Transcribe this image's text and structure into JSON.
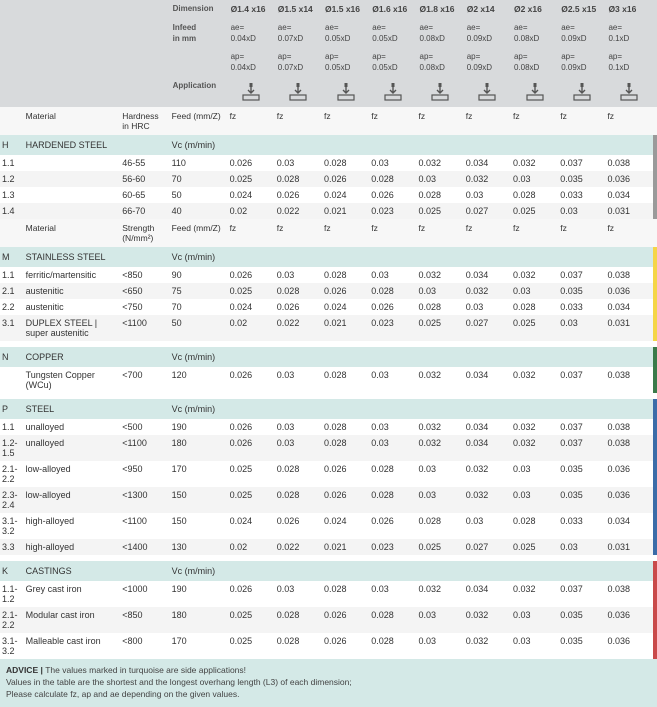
{
  "header": {
    "labels": {
      "dimension": "Dimension",
      "infeed": "Infeed\nin mm",
      "application": "Application",
      "material": "Material",
      "hardness": "Hardness\nin HRC",
      "strength": "Strength\n(N/mm²)",
      "feed": "Feed (mm/Z)",
      "vc": "Vc (m/min)",
      "fz": "fz"
    },
    "dims": [
      "Ø1.4 x16",
      "Ø1.5 x14",
      "Ø1.5 x16",
      "Ø1.6 x16",
      "Ø1.8 x16",
      "Ø2 x14",
      "Ø2 x16",
      "Ø2.5 x15",
      "Ø3 x16"
    ],
    "ae": [
      "ae=\n0.04xD",
      "ae=\n0.07xD",
      "ae=\n0.05xD",
      "ae=\n0.05xD",
      "ae=\n0.08xD",
      "ae=\n0.09xD",
      "ae=\n0.08xD",
      "ae=\n0.09xD",
      "ae=\n0.1xD"
    ],
    "ap": [
      "ap=\n0.04xD",
      "ap=\n0.07xD",
      "ap=\n0.05xD",
      "ap=\n0.05xD",
      "ap=\n0.08xD",
      "ap=\n0.09xD",
      "ap=\n0.08xD",
      "ap=\n0.09xD",
      "ap=\n0.1xD"
    ]
  },
  "groups": [
    {
      "code": "H",
      "name": "HARDENED STEEL",
      "paramLabel": "Hardness\nin HRC",
      "stripe": "s-grey",
      "rows": [
        {
          "n": "1.1",
          "mat": "",
          "p": "46-55",
          "vc": "110",
          "fz": [
            "0.026",
            "0.03",
            "0.028",
            "0.03",
            "0.032",
            "0.034",
            "0.032",
            "0.037",
            "0.038"
          ]
        },
        {
          "n": "1.2",
          "mat": "",
          "p": "56-60",
          "vc": "70",
          "fz": [
            "0.025",
            "0.028",
            "0.026",
            "0.028",
            "0.03",
            "0.032",
            "0.03",
            "0.035",
            "0.036"
          ]
        },
        {
          "n": "1.3",
          "mat": "",
          "p": "60-65",
          "vc": "50",
          "fz": [
            "0.024",
            "0.026",
            "0.024",
            "0.026",
            "0.028",
            "0.03",
            "0.028",
            "0.033",
            "0.034"
          ]
        },
        {
          "n": "1.4",
          "mat": "",
          "p": "66-70",
          "vc": "40",
          "fz": [
            "0.02",
            "0.022",
            "0.021",
            "0.023",
            "0.025",
            "0.027",
            "0.025",
            "0.03",
            "0.031"
          ]
        }
      ]
    },
    {
      "code": "M",
      "name": "STAINLESS STEEL",
      "paramLabel": "Strength\n(N/mm²)",
      "stripe": "s-yellow",
      "rows": [
        {
          "n": "1.1",
          "mat": "ferritic/martensitic",
          "p": "<850",
          "vc": "90",
          "fz": [
            "0.026",
            "0.03",
            "0.028",
            "0.03",
            "0.032",
            "0.034",
            "0.032",
            "0.037",
            "0.038"
          ]
        },
        {
          "n": "2.1",
          "mat": "austenitic",
          "p": "<650",
          "vc": "75",
          "fz": [
            "0.025",
            "0.028",
            "0.026",
            "0.028",
            "0.03",
            "0.032",
            "0.03",
            "0.035",
            "0.036"
          ]
        },
        {
          "n": "2.2",
          "mat": "austenitic",
          "p": "<750",
          "vc": "70",
          "fz": [
            "0.024",
            "0.026",
            "0.024",
            "0.026",
            "0.028",
            "0.03",
            "0.028",
            "0.033",
            "0.034"
          ]
        },
        {
          "n": "3.1",
          "mat": "DUPLEX STEEL |\nsuper austenitic",
          "p": "<1100",
          "vc": "50",
          "fz": [
            "0.02",
            "0.022",
            "0.021",
            "0.023",
            "0.025",
            "0.027",
            "0.025",
            "0.03",
            "0.031"
          ]
        }
      ]
    },
    {
      "code": "N",
      "name": "COPPER",
      "paramLabel": "",
      "stripe": "s-green",
      "rows": [
        {
          "n": "",
          "mat": "Tungsten Copper (WCu)",
          "p": "<700",
          "vc": "120",
          "fz": [
            "0.026",
            "0.03",
            "0.028",
            "0.03",
            "0.032",
            "0.034",
            "0.032",
            "0.037",
            "0.038"
          ]
        }
      ]
    },
    {
      "code": "P",
      "name": "STEEL",
      "paramLabel": "",
      "stripe": "s-blue",
      "rows": [
        {
          "n": "1.1",
          "mat": "unalloyed",
          "p": "<500",
          "vc": "190",
          "fz": [
            "0.026",
            "0.03",
            "0.028",
            "0.03",
            "0.032",
            "0.034",
            "0.032",
            "0.037",
            "0.038"
          ]
        },
        {
          "n": "1.2-1.5",
          "mat": "unalloyed",
          "p": "<1100",
          "vc": "180",
          "fz": [
            "0.026",
            "0.03",
            "0.028",
            "0.03",
            "0.032",
            "0.034",
            "0.032",
            "0.037",
            "0.038"
          ]
        },
        {
          "n": "2.1-2.2",
          "mat": "low-alloyed",
          "p": "<950",
          "vc": "170",
          "fz": [
            "0.025",
            "0.028",
            "0.026",
            "0.028",
            "0.03",
            "0.032",
            "0.03",
            "0.035",
            "0.036"
          ]
        },
        {
          "n": "2.3-2.4",
          "mat": "low-alloyed",
          "p": "<1300",
          "vc": "150",
          "fz": [
            "0.025",
            "0.028",
            "0.026",
            "0.028",
            "0.03",
            "0.032",
            "0.03",
            "0.035",
            "0.036"
          ]
        },
        {
          "n": "3.1-3.2",
          "mat": "high-alloyed",
          "p": "<1100",
          "vc": "150",
          "fz": [
            "0.024",
            "0.026",
            "0.024",
            "0.026",
            "0.028",
            "0.03",
            "0.028",
            "0.033",
            "0.034"
          ]
        },
        {
          "n": "3.3",
          "mat": "high-alloyed",
          "p": "<1400",
          "vc": "130",
          "fz": [
            "0.02",
            "0.022",
            "0.021",
            "0.023",
            "0.025",
            "0.027",
            "0.025",
            "0.03",
            "0.031"
          ]
        }
      ]
    },
    {
      "code": "K",
      "name": "CASTINGS",
      "paramLabel": "",
      "stripe": "s-red",
      "rows": [
        {
          "n": "1.1-1.2",
          "mat": "Grey cast iron",
          "p": "<1000",
          "vc": "190",
          "fz": [
            "0.026",
            "0.03",
            "0.028",
            "0.03",
            "0.032",
            "0.034",
            "0.032",
            "0.037",
            "0.038"
          ]
        },
        {
          "n": "2.1-2.2",
          "mat": "Modular cast iron",
          "p": "<850",
          "vc": "180",
          "fz": [
            "0.025",
            "0.028",
            "0.026",
            "0.028",
            "0.03",
            "0.032",
            "0.03",
            "0.035",
            "0.036"
          ]
        },
        {
          "n": "3.1-3.2",
          "mat": "Malleable cast iron",
          "p": "<800",
          "vc": "170",
          "fz": [
            "0.025",
            "0.028",
            "0.026",
            "0.028",
            "0.03",
            "0.032",
            "0.03",
            "0.035",
            "0.036"
          ]
        }
      ]
    }
  ],
  "advice": {
    "title": "ADVICE | ",
    "lines": [
      "The values marked in turquoise are side applications!",
      "Values in the table are the shortest and the longest overhang length (L3) of each dimension;",
      "Please calculate fz, ap and ae depending on the given values."
    ]
  },
  "colors": {
    "section": "#d4e9e7",
    "headerBg": "#d8dadc"
  }
}
